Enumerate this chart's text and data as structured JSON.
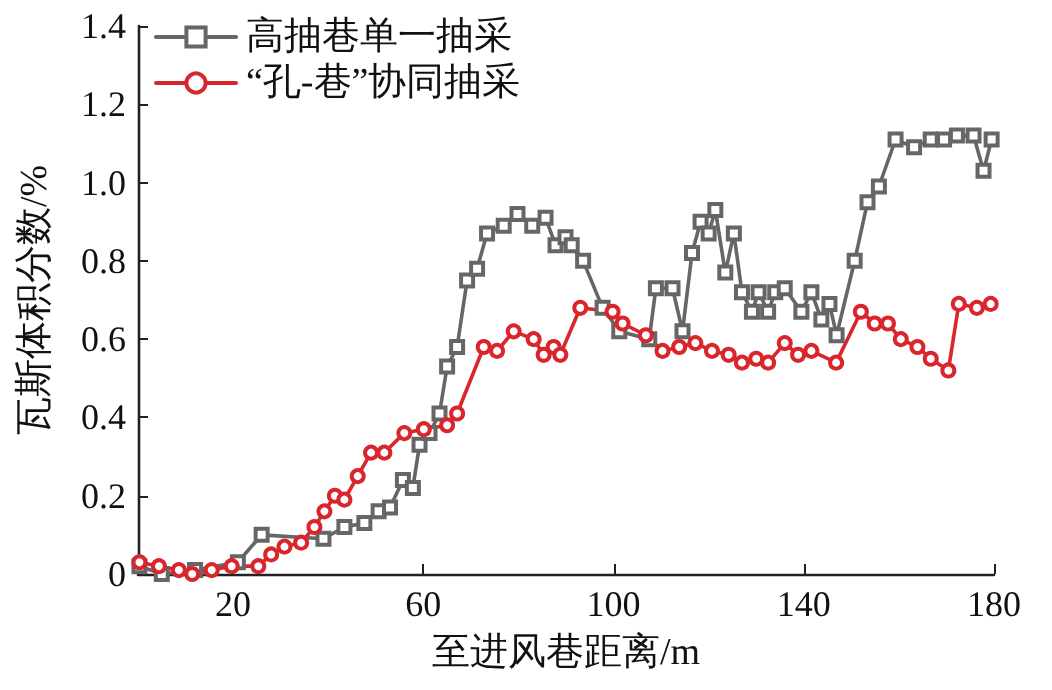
{
  "chart_data": {
    "type": "line",
    "xlabel": "至进风巷距离/m",
    "ylabel": "瓦斯体积分数/%",
    "xlim": [
      0,
      180
    ],
    "xticks": [
      20,
      60,
      100,
      140,
      180
    ],
    "ylim": [
      0,
      1.4
    ],
    "yticks": [
      0,
      0.2,
      0.4,
      0.6,
      0.8,
      {
        "value": 1,
        "label": "1.0"
      },
      1.2,
      1.4
    ],
    "grid": false,
    "legend": "top left",
    "line_style": "solid",
    "series": [
      {
        "name": "高抽巷单一抽采",
        "color": "#666666",
        "marker": "square",
        "x": [
          0.3,
          5,
          12,
          21,
          26,
          39,
          43.4,
          47.6,
          50.6,
          53,
          55.7,
          57.8,
          59.2,
          61.3,
          63.4,
          65,
          67.1,
          69.2,
          71.3,
          73.4,
          76.9,
          79.8,
          82.9,
          85.7,
          87.8,
          89.9,
          91.2,
          93.6,
          97.7,
          101.2,
          107.5,
          108.9,
          112.4,
          114.5,
          116.5,
          118.3,
          120,
          121.4,
          123.5,
          125.3,
          127,
          129.1,
          130.5,
          132.5,
          134,
          136,
          139.5,
          141.6,
          143.7,
          145.4,
          146.9,
          150.7,
          153.4,
          155.8,
          159.3,
          163.2,
          166.7,
          169.5,
          172.2,
          175.7,
          177.8,
          179.5
        ],
        "values": [
          0.02,
          0.0,
          0.01,
          0.03,
          0.1,
          0.09,
          0.12,
          0.13,
          0.16,
          0.17,
          0.24,
          0.22,
          0.33,
          0.36,
          0.41,
          0.53,
          0.58,
          0.75,
          0.78,
          0.87,
          0.89,
          0.92,
          0.89,
          0.91,
          0.84,
          0.86,
          0.84,
          0.8,
          0.68,
          0.62,
          0.6,
          0.73,
          0.73,
          0.62,
          0.82,
          0.9,
          0.87,
          0.93,
          0.77,
          0.87,
          0.72,
          0.67,
          0.72,
          0.67,
          0.72,
          0.73,
          0.67,
          0.72,
          0.65,
          0.69,
          0.61,
          0.8,
          0.95,
          0.99,
          1.11,
          1.09,
          1.11,
          1.11,
          1.12,
          1.12,
          1.03,
          1.11
        ]
      },
      {
        "name": "“孔-巷”协同抽采",
        "color": "#d9262c",
        "marker": "circle",
        "x": [
          0.3,
          4.4,
          8.6,
          11.4,
          15.5,
          19.7,
          25.3,
          28,
          30.8,
          34.3,
          37.1,
          39.2,
          41.4,
          43.4,
          46.2,
          49,
          51.8,
          56,
          60.1,
          65,
          67.1,
          72.7,
          75.5,
          79,
          83.2,
          85.3,
          87.4,
          88.8,
          93,
          99.8,
          101.9,
          106.8,
          110.3,
          113.8,
          117.2,
          120.7,
          124.2,
          127,
          130,
          132.5,
          136,
          138.8,
          141.6,
          146.8,
          152,
          154.9,
          157.7,
          160.4,
          163.9,
          166.7,
          170.4,
          172.6,
          176.4,
          179.3
        ],
        "values": [
          0.03,
          0.02,
          0.01,
          0.0,
          0.01,
          0.02,
          0.02,
          0.05,
          0.07,
          0.08,
          0.12,
          0.16,
          0.2,
          0.19,
          0.25,
          0.31,
          0.31,
          0.36,
          0.37,
          0.38,
          0.41,
          0.58,
          0.57,
          0.62,
          0.6,
          0.56,
          0.58,
          0.56,
          0.68,
          0.67,
          0.64,
          0.61,
          0.57,
          0.58,
          0.59,
          0.57,
          0.56,
          0.54,
          0.55,
          0.54,
          0.59,
          0.56,
          0.57,
          0.54,
          0.67,
          0.64,
          0.64,
          0.6,
          0.58,
          0.55,
          0.52,
          0.69,
          0.68,
          0.69
        ]
      }
    ]
  }
}
